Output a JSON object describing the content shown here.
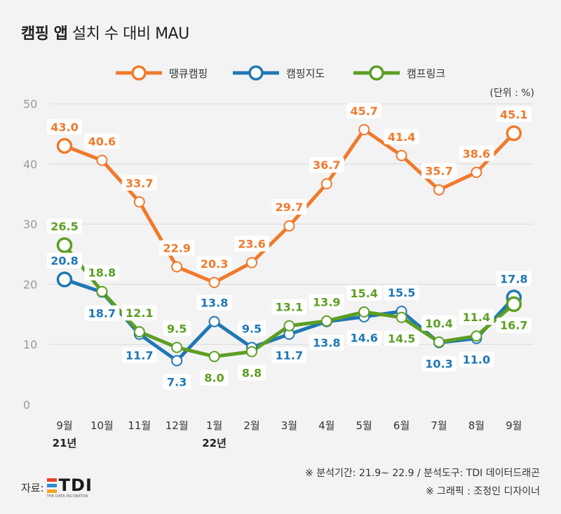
{
  "title_bold": "캠핑 앱",
  "title_rest": "설치 수 대비 MAU",
  "unit_label": "(단위 : %)",
  "source_label": "자료:",
  "logo": {
    "text": "TDI",
    "sub": "THE DATA INCUBATOR",
    "bar_colors": [
      "#e8412c",
      "#2a8bd8",
      "#f5a623"
    ]
  },
  "notes": [
    "※ 분석기간: 21.9~ 22.9 / 분석도구: TDI 데이터드래곤",
    "※ 그래픽 : 조정인 디자이너"
  ],
  "chart_data": {
    "type": "line",
    "title": "캠핑 앱 설치 수 대비 MAU",
    "categories": [
      "9월",
      "10월",
      "11월",
      "12월",
      "1월",
      "2월",
      "3월",
      "4월",
      "5월",
      "6월",
      "7월",
      "8월",
      "9월"
    ],
    "year_labels": [
      {
        "index": 0,
        "label": "21년"
      },
      {
        "index": 4,
        "label": "22년"
      }
    ],
    "ylim": [
      0,
      50
    ],
    "yticks": [
      0,
      10,
      20,
      30,
      40,
      50
    ],
    "grid": true,
    "legend_position": "top",
    "series": [
      {
        "name": "땡큐캠핑",
        "color": "#f07a2c",
        "values": [
          43.0,
          40.6,
          33.7,
          22.9,
          20.3,
          23.6,
          29.7,
          36.7,
          45.7,
          41.4,
          35.7,
          38.6,
          45.1
        ],
        "labels": [
          "43.0",
          "40.6",
          "33.7",
          "22.9",
          "20.3",
          "23.6",
          "29.7",
          "36.7",
          "45.7",
          "41.4",
          "35.7",
          "38.6",
          "45.1"
        ]
      },
      {
        "name": "캠핑지도",
        "color": "#1f77b4",
        "values": [
          20.8,
          18.7,
          11.7,
          7.3,
          13.8,
          9.5,
          11.7,
          13.8,
          14.6,
          15.5,
          10.3,
          11.0,
          17.8
        ],
        "labels": [
          "20.8",
          "18.7",
          "11.7",
          "7.3",
          "13.8",
          "9.5",
          "11.7",
          "13.8",
          "14.6",
          "15.5",
          "10.3",
          "11.0",
          "17.8"
        ]
      },
      {
        "name": "캠프링크",
        "color": "#5c9e22",
        "values": [
          26.5,
          18.8,
          12.1,
          9.5,
          8.0,
          8.8,
          13.1,
          13.9,
          15.4,
          14.5,
          10.4,
          11.4,
          16.7
        ],
        "labels": [
          "26.5",
          "18.8",
          "12.1",
          "9.5",
          "8.0",
          "8.8",
          "13.1",
          "13.9",
          "15.4",
          "14.5",
          "10.4",
          "11.4",
          "16.7"
        ]
      }
    ]
  }
}
